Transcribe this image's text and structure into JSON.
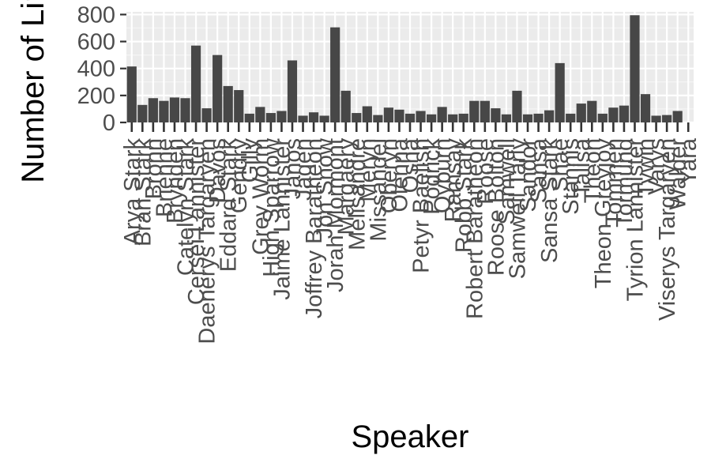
{
  "chart_data": {
    "type": "bar",
    "xlabel": "Speaker",
    "ylabel": "Number of Lines",
    "ylim": [
      0,
      820
    ],
    "yticks": [
      0,
      200,
      400,
      600,
      800
    ],
    "grid": true,
    "legend": "none",
    "colors": {
      "bar": "#474747",
      "panel": "#ebebeb",
      "grid_major": "#ffffff",
      "grid_minor": "#f5f5f5",
      "tick_text": "#4d4d4d"
    },
    "categories": [
      "Arya Stark",
      "Bran Stark",
      "Bronn",
      "Brienne",
      "Brynden",
      "Catelyn Stark",
      "Cersei Lannister",
      "Daenerys Targaryen",
      "Davos",
      "Eddard Stark",
      "Gendry",
      "Gilly",
      "Grey Worm",
      "High Sparrow",
      "Jaime Lannister",
      "Janos",
      "Jaqen",
      "Joffrey Baratheon",
      "Jon Snow",
      "Jorah Mormont",
      "Margaery",
      "Melisandre",
      "Meryn",
      "Missandei",
      "Oberyn",
      "Olenna",
      "Osha",
      "Petyr Baelish",
      "Podrick",
      "Qyburn",
      "Ramsay",
      "Robb Stark",
      "Robert Baratheon",
      "Roose",
      "Roose Bolton",
      "Samwell",
      "Samwell Tarly",
      "Sandor",
      "Sansa",
      "Sansa Stark",
      "Shae",
      "Stannis",
      "Talisa",
      "Theon",
      "Theon Greyjoy",
      "Tommen",
      "Tormund",
      "Tyrion Lannister",
      "Tywin",
      "Varys",
      "Viserys Targaryen",
      "Walder",
      "Yara"
    ],
    "values": [
      415,
      130,
      180,
      160,
      185,
      180,
      570,
      105,
      500,
      270,
      240,
      65,
      115,
      70,
      85,
      460,
      50,
      75,
      50,
      705,
      235,
      70,
      120,
      55,
      110,
      95,
      65,
      85,
      60,
      115,
      60,
      65,
      160,
      160,
      105,
      60,
      235,
      60,
      65,
      90,
      440,
      65,
      140,
      160,
      65,
      110,
      125,
      795,
      210,
      50,
      55,
      85,
      0
    ]
  }
}
